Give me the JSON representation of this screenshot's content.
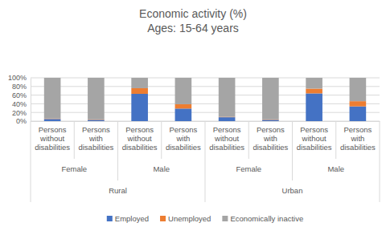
{
  "chart_data": {
    "type": "bar",
    "stacked": true,
    "title": "Economic activity (%)",
    "subtitle": "Ages: 15-64 years",
    "categories": [
      "Persons without disabilities",
      "Persons with disabilities",
      "Persons without disabilities",
      "Persons with disabilities",
      "Persons without disabilities",
      "Persons with disabilities",
      "Persons without disabilities",
      "Persons with disabilities"
    ],
    "group_levels": [
      [
        "Female",
        "Male",
        "Female",
        "Male"
      ],
      [
        "Rural",
        "Urban"
      ]
    ],
    "series": [
      {
        "name": "Employed",
        "color": "#4472c4",
        "values": [
          5,
          3,
          63,
          29,
          9,
          3,
          64,
          34
        ]
      },
      {
        "name": "Unemployed",
        "color": "#ed7d31",
        "values": [
          1,
          1,
          13,
          10,
          1,
          1,
          11,
          12
        ]
      },
      {
        "name": "Economically inactive",
        "color": "#a5a5a5",
        "values": [
          94,
          96,
          24,
          61,
          90,
          96,
          25,
          54
        ]
      }
    ],
    "ylim": [
      0,
      100
    ],
    "yticks": [
      {
        "value": 0,
        "label": "0%"
      },
      {
        "value": 20,
        "label": "20%"
      },
      {
        "value": 40,
        "label": "40%"
      },
      {
        "value": 60,
        "label": "60%"
      },
      {
        "value": 80,
        "label": "80%"
      },
      {
        "value": 100,
        "label": "100%"
      }
    ],
    "grid": true,
    "legend": "bottom"
  }
}
